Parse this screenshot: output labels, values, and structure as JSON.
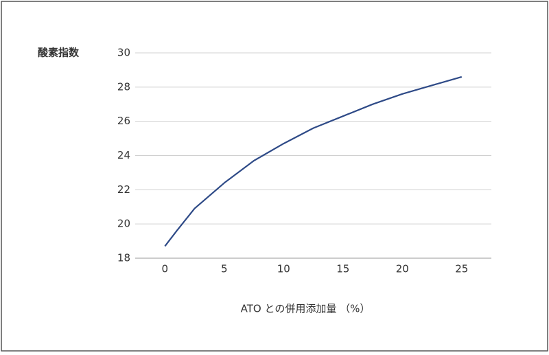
{
  "chart_data": {
    "type": "line",
    "ylabel": "酸素指数",
    "xlabel": "ATO との併用添加量 （%）",
    "x": [
      0,
      1,
      2.5,
      5,
      7.5,
      10,
      12.5,
      15,
      17.5,
      20,
      22.5,
      25
    ],
    "series": [
      {
        "color": "#2e4a87",
        "values": [
          18.7,
          19.6,
          20.9,
          22.4,
          23.7,
          24.7,
          25.6,
          26.3,
          27.0,
          27.6,
          28.1,
          28.6
        ]
      }
    ],
    "xlim": [
      -2.5,
      27.5
    ],
    "xticks": [
      0,
      5,
      10,
      15,
      20,
      25
    ],
    "ylim": [
      18,
      30
    ],
    "yticks": [
      18,
      20,
      22,
      24,
      26,
      28,
      30
    ],
    "grid": true
  }
}
